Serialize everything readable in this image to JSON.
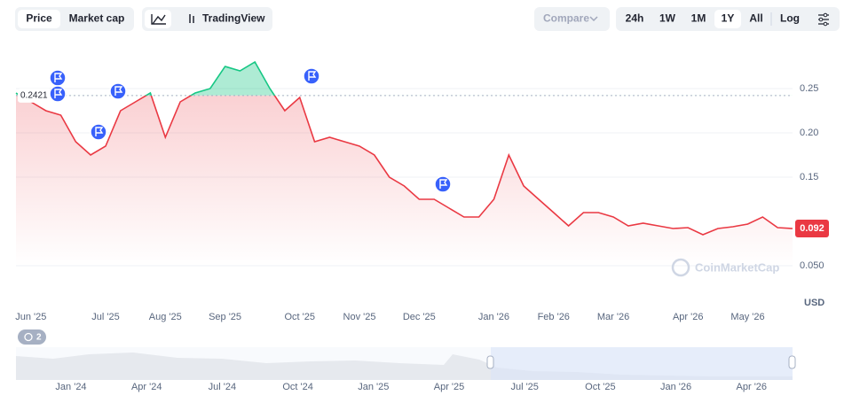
{
  "ui": {
    "tabs": [
      "Price",
      "Market cap"
    ],
    "tradingview": "TradingView",
    "compare": "Compare",
    "ranges": [
      "24h",
      "1W",
      "1M",
      "1Y",
      "All"
    ],
    "log": "Log",
    "currency": "USD",
    "watermark": "CoinMarketCap",
    "history_count": "2",
    "navigator_labels": [
      "Jan '24",
      "Apr '24",
      "Jul '24",
      "Oct '24",
      "Jan '25",
      "Apr '25",
      "Jul '25",
      "Oct '25",
      "Jan '26",
      "Apr '26"
    ]
  },
  "chart_data": {
    "type": "line",
    "categories": [
      null,
      "Jun '25",
      null,
      null,
      null,
      null,
      "Jul '25",
      null,
      null,
      null,
      "Aug '25",
      null,
      null,
      null,
      "Sep '25",
      null,
      null,
      null,
      null,
      "Oct '25",
      null,
      null,
      null,
      "Nov '25",
      null,
      null,
      null,
      "Dec '25",
      null,
      null,
      null,
      null,
      "Jan '26",
      null,
      null,
      null,
      "Feb '26",
      null,
      null,
      null,
      "Mar '26",
      null,
      null,
      null,
      null,
      "Apr '26",
      null,
      null,
      null,
      "May '26",
      null,
      null,
      null
    ],
    "values": [
      0.245,
      0.235,
      0.225,
      0.22,
      0.19,
      0.175,
      0.185,
      0.225,
      0.235,
      0.245,
      0.195,
      0.235,
      0.245,
      0.25,
      0.275,
      0.27,
      0.28,
      0.25,
      0.225,
      0.24,
      0.19,
      0.195,
      0.19,
      0.185,
      0.175,
      0.15,
      0.14,
      0.125,
      0.125,
      0.115,
      0.105,
      0.105,
      0.125,
      0.175,
      0.14,
      0.125,
      0.11,
      0.095,
      0.11,
      0.11,
      0.105,
      0.095,
      0.098,
      0.095,
      0.092,
      0.093,
      0.085,
      0.092,
      0.094,
      0.097,
      0.105,
      0.093,
      0.092
    ],
    "color": "#ea3943",
    "color_above": "#16c784",
    "baseline": 0.2421,
    "price_tag": "0.092",
    "ylim": [
      0.05,
      0.3
    ],
    "yticks": [
      {
        "value": 0.05,
        "label": "0.050"
      },
      0.15,
      {
        "value": 0.2,
        "label": "0.20"
      },
      0.25
    ],
    "grid": true
  }
}
